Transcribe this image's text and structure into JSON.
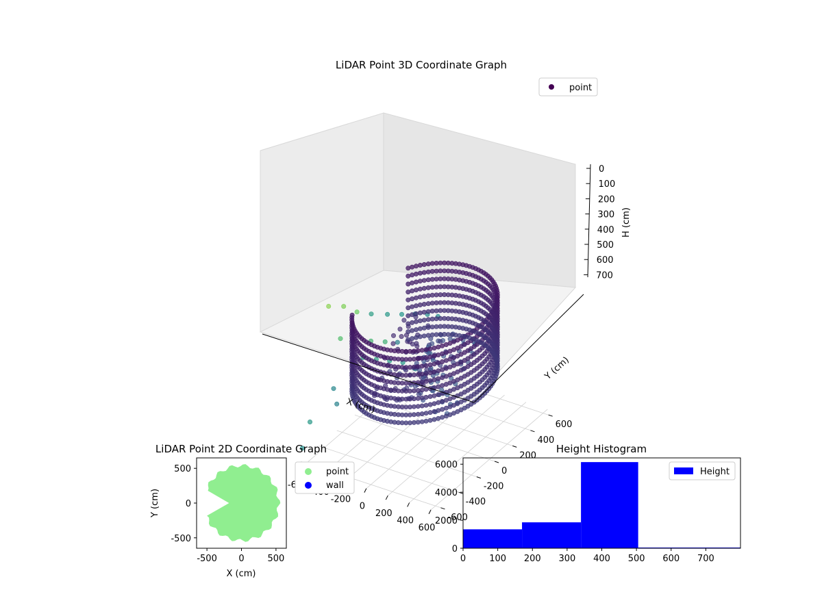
{
  "chart_data": [
    {
      "type": "scatter",
      "projection": "3d",
      "title": "LiDAR Point 3D Coordinate Graph",
      "xlabel": "X (cm)",
      "ylabel": "Y (cm)",
      "zlabel": "H (cm)",
      "xlim": [
        -650,
        650
      ],
      "ylim": [
        -650,
        650
      ],
      "zlim": [
        780,
        0
      ],
      "xticks": [
        "-600",
        "-400",
        "-200",
        "0",
        "200",
        "400",
        "600"
      ],
      "yticks": [
        "-600",
        "-400",
        "-200",
        "0",
        "200",
        "400",
        "600"
      ],
      "zticks": [
        "0",
        "100",
        "200",
        "300",
        "400",
        "500",
        "600",
        "700"
      ],
      "z_axis_inverted": true,
      "grid": true,
      "colormap": "viridis",
      "legend": {
        "position": "upper-right",
        "entries": [
          {
            "label": "point",
            "color": "#440154"
          }
        ]
      },
      "series": [
        {
          "name": "point",
          "shape": "partial-ring wall",
          "ring_radius_cm": 520,
          "arc_start_deg": 215,
          "arc_end_deg": 505,
          "wall_height_range_cm": [
            120,
            480
          ],
          "inner_structure_height_range_cm": [
            260,
            560
          ],
          "scattered_points": [
            {
              "x": -560,
              "y": -400,
              "h": 60
            },
            {
              "x": -520,
              "y": -280,
              "h": 100
            },
            {
              "x": -480,
              "y": -180,
              "h": 160
            },
            {
              "x": -430,
              "y": -80,
              "h": 200
            },
            {
              "x": -380,
              "y": 40,
              "h": 240
            },
            {
              "x": -330,
              "y": 140,
              "h": 270
            },
            {
              "x": -290,
              "y": 240,
              "h": 300
            },
            {
              "x": -250,
              "y": 330,
              "h": 330
            },
            {
              "x": -210,
              "y": 400,
              "h": 360
            },
            {
              "x": -600,
              "y": -220,
              "h": 300
            },
            {
              "x": -560,
              "y": -120,
              "h": 350
            },
            {
              "x": -500,
              "y": 0,
              "h": 380
            },
            {
              "x": -460,
              "y": 110,
              "h": 420
            },
            {
              "x": -420,
              "y": 200,
              "h": 450
            },
            {
              "x": -640,
              "y": 80,
              "h": 520
            },
            {
              "x": -600,
              "y": 180,
              "h": 560
            },
            {
              "x": -560,
              "y": 280,
              "h": 600
            },
            {
              "x": -520,
              "y": 380,
              "h": 640
            },
            {
              "x": -480,
              "y": 470,
              "h": 700
            },
            {
              "x": -440,
              "y": 540,
              "h": 740
            },
            {
              "x": -650,
              "y": -500,
              "h": 620
            },
            {
              "x": -620,
              "y": -620,
              "h": 700
            },
            {
              "x": -380,
              "y": -560,
              "h": 380
            },
            {
              "x": -300,
              "y": -620,
              "h": 420
            }
          ]
        }
      ]
    },
    {
      "type": "scatter",
      "title": "LiDAR Point 2D Coordinate Graph",
      "xlabel": "X (cm)",
      "ylabel": "Y (cm)",
      "xlim": [
        -650,
        650
      ],
      "ylim": [
        -650,
        650
      ],
      "xticks": [
        "-500",
        "0",
        "500"
      ],
      "yticks": [
        "-500",
        "0",
        "500"
      ],
      "legend": {
        "position": "outside-right",
        "entries": [
          {
            "label": "point",
            "color": "#90ee90"
          },
          {
            "label": "wall",
            "color": "#0000ff"
          }
        ]
      },
      "series": [
        {
          "name": "point",
          "color": "#90ee90",
          "shape": "filled disk with notch toward -x",
          "radius_cm": 540,
          "notch_open_angle_deg": [
            160,
            200
          ]
        },
        {
          "name": "wall",
          "color": "#0000ff",
          "points": []
        }
      ]
    },
    {
      "type": "bar",
      "subtype": "histogram",
      "title": "Height Histogram",
      "xlim": [
        0,
        800
      ],
      "ylim": [
        0,
        6450
      ],
      "xticks": [
        "0",
        "100",
        "200",
        "300",
        "400",
        "500",
        "600",
        "700"
      ],
      "yticks": [
        "0",
        "2000",
        "4000",
        "6000"
      ],
      "legend": {
        "position": "upper-right",
        "entries": [
          {
            "label": "Height",
            "color": "#0000ff"
          }
        ]
      },
      "series": [
        {
          "name": "Height",
          "color": "#0000ff",
          "bins": [
            {
              "x0": 0,
              "x1": 170,
              "count": 1350
            },
            {
              "x0": 170,
              "x1": 340,
              "count": 1850
            },
            {
              "x0": 340,
              "x1": 505,
              "count": 6150
            },
            {
              "x0": 505,
              "x1": 800,
              "count": 50
            }
          ]
        }
      ]
    }
  ]
}
